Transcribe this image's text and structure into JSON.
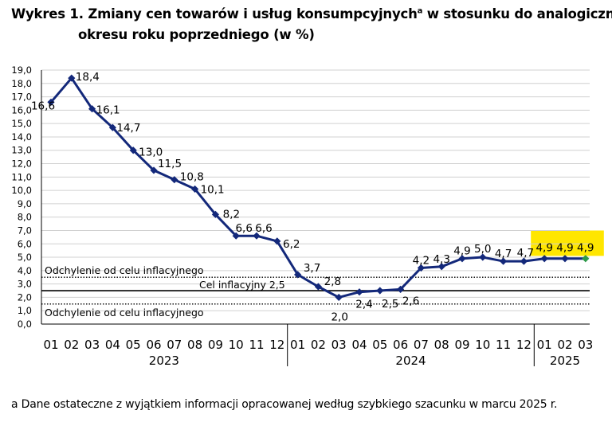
{
  "title": {
    "line1_prefix": "Wykres 1. Zmiany cen towarów i usług konsumpcyjnych",
    "line1_sup": "a",
    "line1_suffix": " w stosunku do analogicznego",
    "line2": "okresu roku poprzedniego (w %)"
  },
  "footnote": "a Dane ostateczne z wyjątkiem informacji opracowanej według szybkiego szacunku w marcu 2025 r.",
  "colors": {
    "line": "#13287a",
    "highlight": "#ffe600",
    "last_point": "#2e9a4a",
    "grid": "#d0d0d0"
  },
  "chart_data": {
    "type": "line",
    "categories": [
      "01",
      "02",
      "03",
      "04",
      "05",
      "06",
      "07",
      "08",
      "09",
      "10",
      "11",
      "12",
      "01",
      "02",
      "03",
      "04",
      "05",
      "06",
      "07",
      "08",
      "09",
      "10",
      "11",
      "12",
      "01",
      "02",
      "03"
    ],
    "years": [
      {
        "label": "2023",
        "from": 0,
        "to": 11
      },
      {
        "label": "2024",
        "from": 12,
        "to": 23
      },
      {
        "label": "2025",
        "from": 24,
        "to": 26
      }
    ],
    "series": [
      {
        "values": [
          16.6,
          18.4,
          16.1,
          14.7,
          13.0,
          11.5,
          10.8,
          10.1,
          8.2,
          6.6,
          6.6,
          6.2,
          3.7,
          2.8,
          2.0,
          2.4,
          2.5,
          2.6,
          4.2,
          4.3,
          4.9,
          5.0,
          4.7,
          4.7,
          4.9,
          4.9,
          4.9
        ],
        "labels": [
          "16,6",
          "18,4",
          "16,1",
          "14,7",
          "13,0",
          "11,5",
          "10,8",
          "10,1",
          "8,2",
          "6,6",
          "6,6",
          "6,2",
          "3,7",
          "2,8",
          "2,0",
          "2,4",
          "2,5",
          "2,6",
          "4,2",
          "4,3",
          "4,9",
          "5,0",
          "4,7",
          "4,7",
          "4,9",
          "4,9",
          "4,9"
        ]
      }
    ],
    "highlighted_indices": [
      24,
      25,
      26
    ],
    "ylim": [
      0,
      19
    ],
    "yticks": [
      "0,0",
      "1,0",
      "2,0",
      "3,0",
      "4,0",
      "5,0",
      "6,0",
      "7,0",
      "8,0",
      "9,0",
      "10,0",
      "11,0",
      "12,0",
      "13,0",
      "14,0",
      "15,0",
      "16,0",
      "17,0",
      "18,0",
      "19,0"
    ],
    "reference_lines": [
      {
        "label": "Odchylenie od celu inflacyjnego",
        "value": 3.5,
        "style": "dotted"
      },
      {
        "label": "Cel inflacyjny 2,5",
        "value": 2.5,
        "style": "solid"
      },
      {
        "label": "Odchylenie od celu inflacyjnego",
        "value": 1.5,
        "style": "dotted"
      }
    ],
    "grid": true
  }
}
